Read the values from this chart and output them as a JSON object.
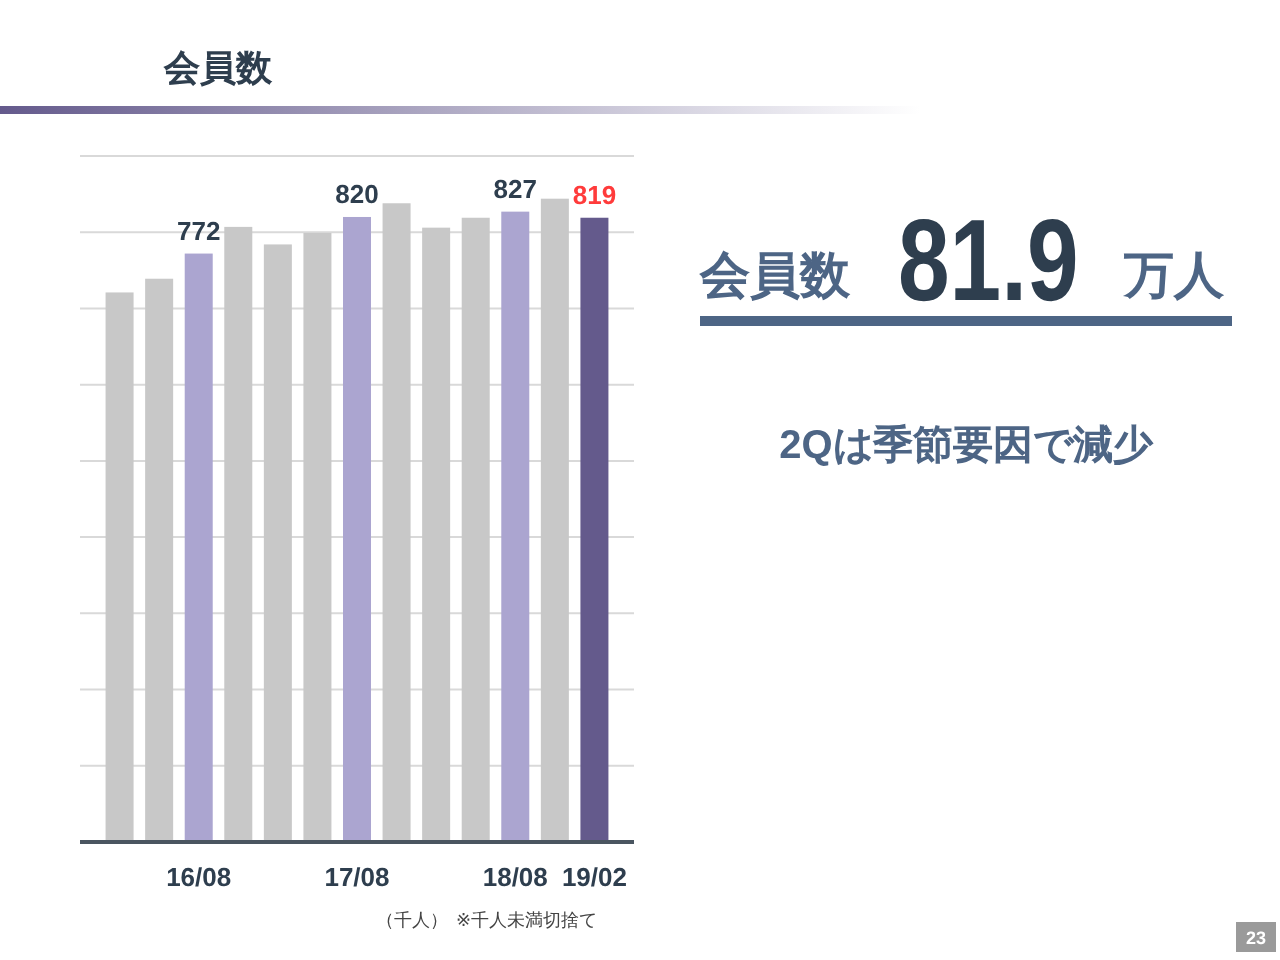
{
  "chart_data": {
    "type": "bar",
    "title": "会員数",
    "categories": [
      null,
      null,
      "16/08",
      null,
      null,
      null,
      "17/08",
      null,
      null,
      null,
      "18/08",
      null,
      "19/02"
    ],
    "values": [
      721,
      739,
      772,
      807,
      784,
      799,
      820,
      838,
      806,
      819,
      827,
      844,
      819
    ],
    "colors": [
      "#c8c8c8",
      "#c8c8c8",
      "#aba5d0",
      "#c8c8c8",
      "#c8c8c8",
      "#c8c8c8",
      "#aba5d0",
      "#c8c8c8",
      "#c8c8c8",
      "#c8c8c8",
      "#aba5d0",
      "#c8c8c8",
      "#645a8c"
    ],
    "value_labels": [
      null,
      null,
      "772",
      null,
      null,
      null,
      "820",
      null,
      null,
      null,
      "827",
      null,
      "819"
    ],
    "ylim": [
      0,
      900
    ],
    "yticks": [
      {
        "value": 100,
        "label": null
      },
      {
        "value": 200,
        "label": null
      },
      {
        "value": 300,
        "label": null
      },
      {
        "value": 400,
        "label": null
      },
      {
        "value": 500,
        "label": null
      },
      {
        "value": 600,
        "label": null
      },
      {
        "value": 700,
        "label": null
      },
      {
        "value": 800,
        "label": null
      },
      {
        "value": 900,
        "label": null
      }
    ],
    "grid": "y",
    "annotations": [
      "（千人）",
      "※千人未満切捨て",
      "会員数",
      "81.9",
      "万人",
      "2Qは季節要因で減少",
      "23"
    ]
  }
}
